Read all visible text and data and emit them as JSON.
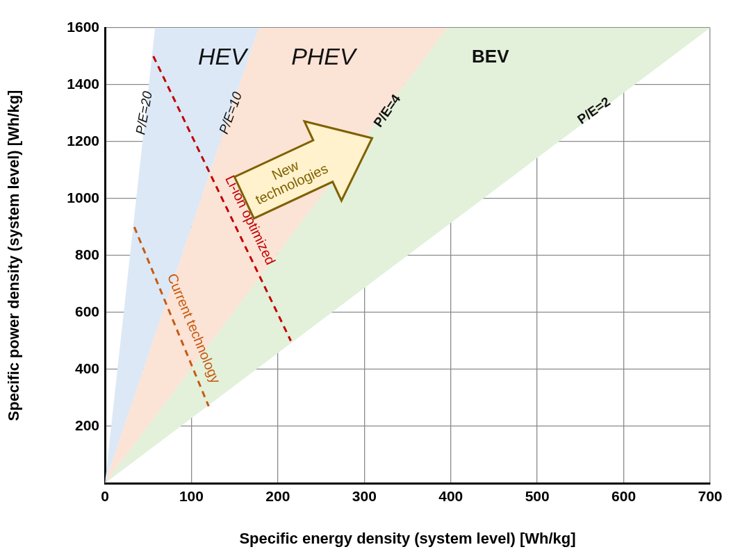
{
  "chart_data": {
    "type": "area",
    "xlabel": "Specific energy density (system level) [Wh/kg]",
    "ylabel": "Specific power density (system level) [Wh/kg]",
    "xlim": [
      0,
      700
    ],
    "ylim": [
      0,
      1600
    ],
    "xticks": [
      0,
      100,
      200,
      300,
      400,
      500,
      600,
      700
    ],
    "yticks": [
      {
        "value": 0,
        "label": null
      },
      200,
      400,
      600,
      800,
      1000,
      1200,
      1400,
      1600
    ],
    "grid": true,
    "legend": false,
    "marker": "none",
    "series": [
      {
        "color": "#dce8f5",
        "x": [
          0,
          58,
          178
        ],
        "values": [
          0,
          1600,
          1600
        ]
      },
      {
        "color": "#fbe3d6",
        "x": [
          0,
          178,
          396
        ],
        "values": [
          0,
          1600,
          1600
        ]
      },
      {
        "color": "#e3f0da",
        "x": [
          0,
          396,
          700
        ],
        "values": [
          0,
          1600,
          1600
        ]
      },
      {
        "type": "line",
        "name": "Current technology",
        "color": "#c55a11",
        "line_style": "dashed",
        "x": [
          34,
          120
        ],
        "values": [
          900,
          270
        ]
      },
      {
        "type": "line",
        "name": "Li-ion optimized",
        "color": "#c00000",
        "line_style": "dashed",
        "x": [
          56,
          215
        ],
        "values": [
          1500,
          500
        ]
      }
    ],
    "annotations": [
      "HEV",
      "PHEV",
      "BEV",
      {
        "text": "P/E=20",
        "x": 46,
        "y": 1300
      },
      {
        "text": "P/E=10",
        "x": 146,
        "y": 1300
      },
      {
        "text": "P/E=4",
        "x": 327,
        "y": 1307
      },
      {
        "text": "P/E=2",
        "x": 566,
        "y": 1307
      },
      "New technologies"
    ]
  }
}
